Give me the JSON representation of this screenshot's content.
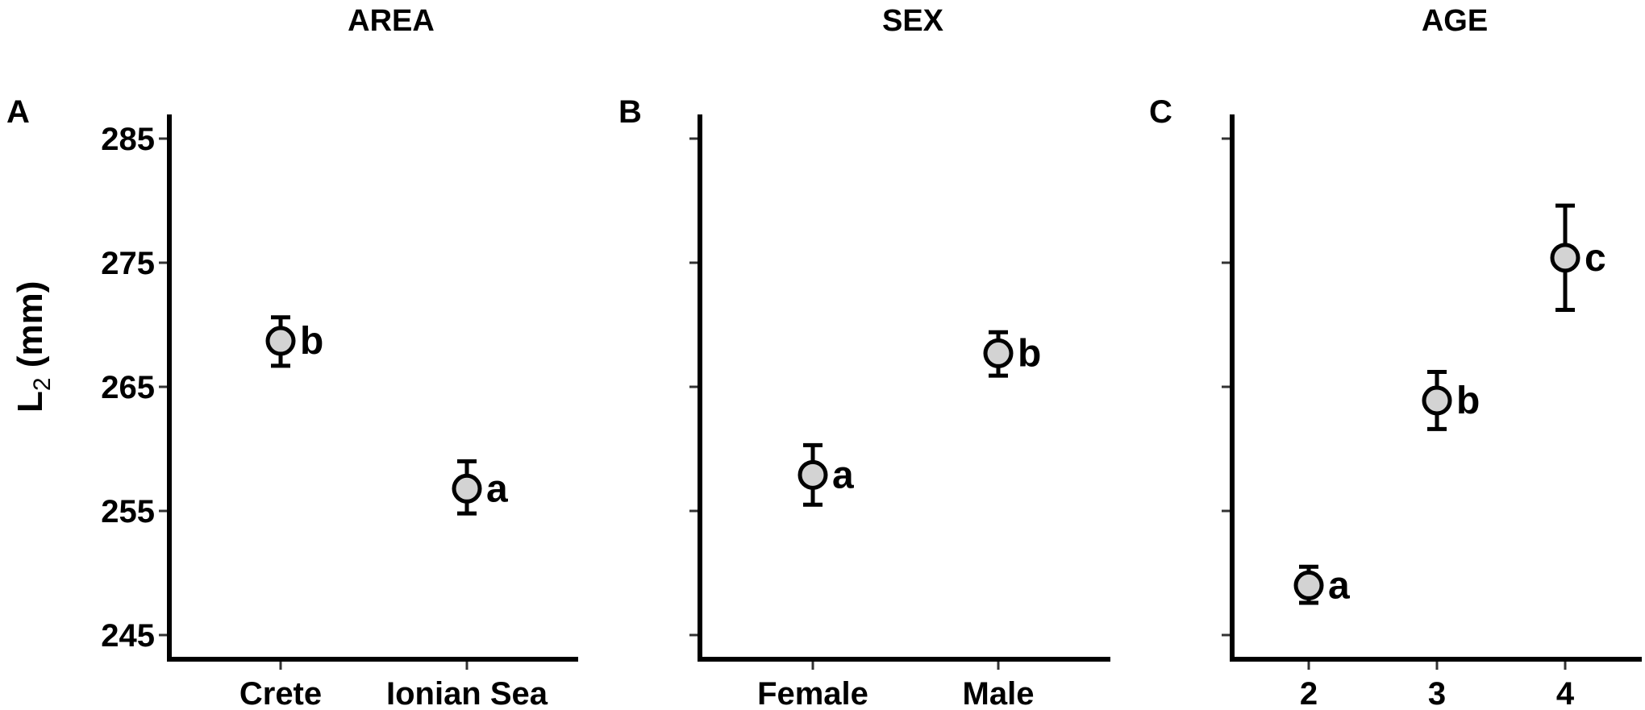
{
  "figure": {
    "ylabel_main": "L",
    "ylabel_sub": "2",
    "ylabel_unit": " (mm)",
    "point_fill": "#d3d3d3",
    "point_stroke": "#000000"
  },
  "chart_data": [
    {
      "type": "scatter",
      "panel": "A",
      "title": "AREA",
      "xlabel": "",
      "ylabel": "L2 (mm)",
      "categories": [
        "Crete",
        "Ionian Sea"
      ],
      "values": [
        268.7,
        256.8
      ],
      "error_upper": [
        270.6,
        259.0
      ],
      "error_lower": [
        266.7,
        254.8
      ],
      "significance_letters": [
        "b",
        "a"
      ],
      "ylim": [
        243,
        287
      ],
      "yticks": [
        245,
        255,
        265,
        275,
        285
      ],
      "grid": false
    },
    {
      "type": "scatter",
      "panel": "B",
      "title": "SEX",
      "xlabel": "",
      "ylabel": "L2 (mm)",
      "categories": [
        "Female",
        "Male"
      ],
      "values": [
        257.9,
        267.7
      ],
      "error_upper": [
        260.3,
        269.4
      ],
      "error_lower": [
        255.5,
        265.9
      ],
      "significance_letters": [
        "a",
        "b"
      ],
      "ylim": [
        243,
        287
      ],
      "yticks": [
        245,
        255,
        265,
        275,
        285
      ],
      "grid": false
    },
    {
      "type": "scatter",
      "panel": "C",
      "title": "AGE",
      "xlabel": "",
      "ylabel": "L2 (mm)",
      "categories": [
        "2",
        "3",
        "4"
      ],
      "values": [
        249.0,
        263.9,
        275.4
      ],
      "error_upper": [
        250.5,
        266.2,
        279.6
      ],
      "error_lower": [
        247.6,
        261.6,
        271.2
      ],
      "significance_letters": [
        "a",
        "b",
        "c"
      ],
      "ylim": [
        243,
        287
      ],
      "yticks": [
        245,
        255,
        265,
        275,
        285
      ],
      "grid": false
    }
  ]
}
